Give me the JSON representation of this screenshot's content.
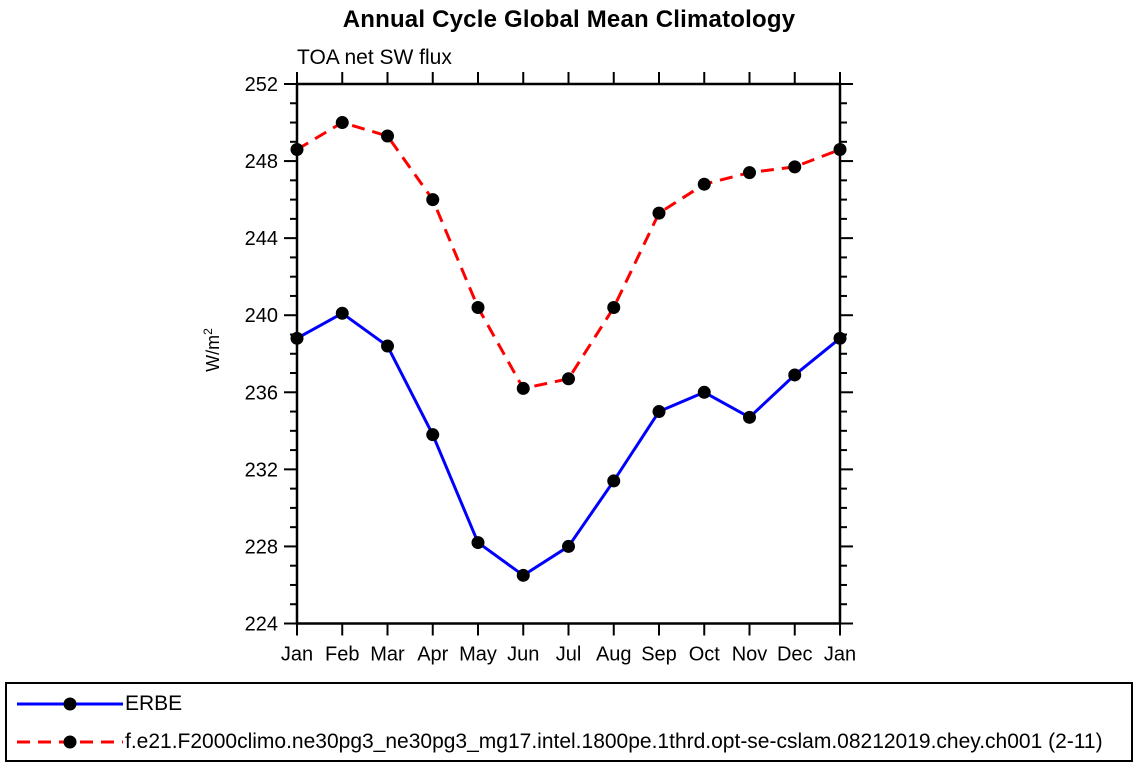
{
  "figure": {
    "title": "Annual Cycle Global Mean Climatology",
    "subtitle": "TOA net SW flux",
    "ylabel_base": "W/m",
    "ylabel_sup": "2"
  },
  "chart_data": {
    "type": "line",
    "title": "Annual Cycle Global Mean Climatology",
    "subtitle": "TOA net SW flux",
    "xlabel": "",
    "ylabel": "W/m^2",
    "categories": [
      "Jan",
      "Feb",
      "Mar",
      "Apr",
      "May",
      "Jun",
      "Jul",
      "Aug",
      "Sep",
      "Oct",
      "Nov",
      "Dec",
      "Jan"
    ],
    "ylim": [
      224,
      252
    ],
    "ytick_major": 4,
    "ytick_minor": 1,
    "grid": false,
    "legend_position": "bottom-box",
    "marker": "filled-circle",
    "marker_color": "#000000",
    "axis_color": "#000000",
    "series": [
      {
        "name": "ERBE",
        "color": "#0000ff",
        "style": "solid",
        "dash": "",
        "values": [
          238.8,
          240.1,
          238.4,
          233.8,
          228.2,
          226.5,
          228.0,
          231.4,
          235.0,
          236.0,
          234.7,
          236.9,
          238.8
        ]
      },
      {
        "name": "f.e21.F2000climo.ne30pg3_ne30pg3_mg17.intel.1800pe.1thrd.opt-se-cslam.08212019.chey.ch001 (2-11)",
        "color": "#ff0000",
        "style": "dashed",
        "dash": "13 8",
        "values": [
          248.6,
          250.0,
          249.3,
          246.0,
          240.4,
          236.2,
          236.7,
          240.4,
          245.3,
          246.8,
          247.4,
          247.7,
          248.6
        ]
      }
    ]
  }
}
